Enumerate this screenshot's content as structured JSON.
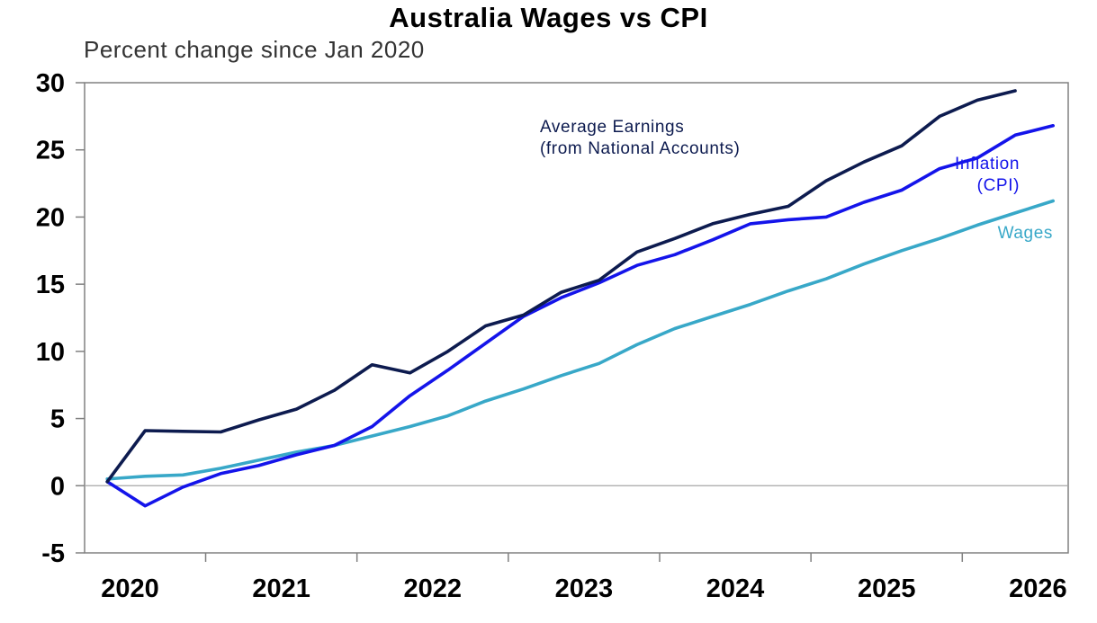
{
  "chart_data": {
    "type": "line",
    "title": "Australia Wages vs CPI",
    "subtitle": "Percent change since Jan 2020",
    "xlabel": "",
    "ylabel": "",
    "xlim": [
      2019.7,
      2026.2
    ],
    "ylim": [
      -5,
      30
    ],
    "yticks": [
      -5,
      0,
      5,
      10,
      15,
      20,
      25,
      30
    ],
    "xtick_labels": [
      "2020",
      "2021",
      "2022",
      "2023",
      "2024",
      "2025",
      "2026"
    ],
    "x_label_positions": [
      2020,
      2021,
      2022,
      2023,
      2024,
      2025,
      2026
    ],
    "x_tick_marks": [
      2020.5,
      2021.5,
      2022.5,
      2023.5,
      2024.5,
      2025.5
    ],
    "grid": false,
    "zero_line": true,
    "series": [
      {
        "name": "Average Earnings",
        "label_lines": [
          "Average Earnings",
          "(from National Accounts)"
        ],
        "color": "#0d1b4f",
        "points": [
          [
            2019.85,
            0.3
          ],
          [
            2020.1,
            4.1
          ],
          [
            2020.35,
            4.05
          ],
          [
            2020.6,
            4.0
          ],
          [
            2020.85,
            4.9
          ],
          [
            2021.1,
            5.7
          ],
          [
            2021.35,
            7.1
          ],
          [
            2021.6,
            9.0
          ],
          [
            2021.85,
            8.4
          ],
          [
            2022.1,
            10.0
          ],
          [
            2022.35,
            11.9
          ],
          [
            2022.6,
            12.7
          ],
          [
            2022.85,
            14.4
          ],
          [
            2023.1,
            15.3
          ],
          [
            2023.35,
            17.4
          ],
          [
            2023.6,
            18.4
          ],
          [
            2023.85,
            19.5
          ],
          [
            2024.1,
            20.2
          ],
          [
            2024.35,
            20.8
          ],
          [
            2024.6,
            22.7
          ],
          [
            2024.85,
            24.1
          ],
          [
            2025.1,
            25.3
          ],
          [
            2025.35,
            27.5
          ],
          [
            2025.6,
            28.7
          ],
          [
            2025.85,
            29.4
          ]
        ]
      },
      {
        "name": "Inflation",
        "label_lines": [
          "Inflation",
          "(CPI)"
        ],
        "color": "#1414ea",
        "points": [
          [
            2019.85,
            0.3
          ],
          [
            2020.1,
            -1.5
          ],
          [
            2020.35,
            -0.1
          ],
          [
            2020.6,
            0.9
          ],
          [
            2020.85,
            1.5
          ],
          [
            2021.1,
            2.3
          ],
          [
            2021.35,
            3.0
          ],
          [
            2021.6,
            4.4
          ],
          [
            2021.85,
            6.7
          ],
          [
            2022.1,
            8.6
          ],
          [
            2022.35,
            10.6
          ],
          [
            2022.6,
            12.6
          ],
          [
            2022.85,
            14.0
          ],
          [
            2023.1,
            15.1
          ],
          [
            2023.35,
            16.4
          ],
          [
            2023.6,
            17.2
          ],
          [
            2023.85,
            18.3
          ],
          [
            2024.1,
            19.5
          ],
          [
            2024.35,
            19.8
          ],
          [
            2024.6,
            20.0
          ],
          [
            2024.85,
            21.1
          ],
          [
            2025.1,
            22.0
          ],
          [
            2025.35,
            23.6
          ],
          [
            2025.6,
            24.4
          ],
          [
            2025.85,
            26.1
          ],
          [
            2026.1,
            26.8
          ]
        ]
      },
      {
        "name": "Wages",
        "label_lines": [
          "Wages"
        ],
        "color": "#38a8c8",
        "points": [
          [
            2019.85,
            0.5
          ],
          [
            2020.1,
            0.7
          ],
          [
            2020.35,
            0.8
          ],
          [
            2020.6,
            1.3
          ],
          [
            2020.85,
            1.9
          ],
          [
            2021.1,
            2.5
          ],
          [
            2021.35,
            3.0
          ],
          [
            2021.6,
            3.7
          ],
          [
            2021.85,
            4.4
          ],
          [
            2022.1,
            5.2
          ],
          [
            2022.35,
            6.3
          ],
          [
            2022.6,
            7.2
          ],
          [
            2022.85,
            8.2
          ],
          [
            2023.1,
            9.1
          ],
          [
            2023.35,
            10.5
          ],
          [
            2023.6,
            11.7
          ],
          [
            2023.85,
            12.6
          ],
          [
            2024.1,
            13.5
          ],
          [
            2024.35,
            14.5
          ],
          [
            2024.6,
            15.4
          ],
          [
            2024.85,
            16.5
          ],
          [
            2025.1,
            17.5
          ],
          [
            2025.35,
            18.4
          ],
          [
            2025.6,
            19.4
          ],
          [
            2025.85,
            20.3
          ],
          [
            2026.1,
            21.2
          ]
        ]
      }
    ]
  }
}
